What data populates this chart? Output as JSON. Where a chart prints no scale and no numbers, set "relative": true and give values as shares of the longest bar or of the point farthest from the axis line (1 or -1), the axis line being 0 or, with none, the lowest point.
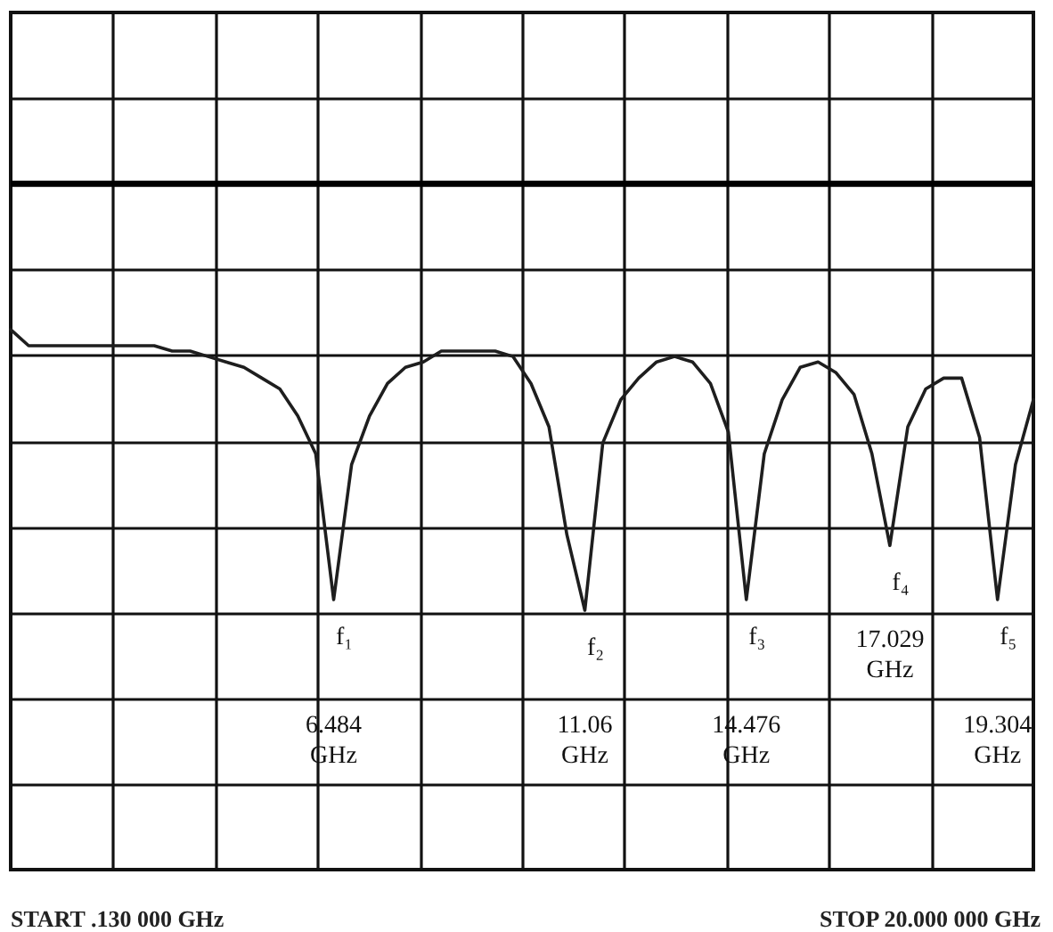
{
  "chart_data": {
    "type": "line",
    "relative": true,
    "categories": [
      null,
      null,
      null,
      null,
      null,
      null,
      null,
      null,
      null,
      null,
      null,
      null,
      null,
      null,
      null,
      null,
      null,
      null,
      null,
      null,
      null,
      null,
      null,
      null,
      null,
      null,
      null,
      null,
      null,
      null,
      null,
      null,
      null,
      null,
      null,
      null,
      null,
      null,
      null,
      null,
      null,
      null,
      null,
      null,
      null,
      null,
      null,
      null,
      null,
      null,
      null,
      null,
      null,
      null,
      null,
      null,
      null,
      null
    ],
    "series": [
      {
        "color": "#1e1e1e",
        "values": [
          1.0,
          0.97,
          0.97,
          0.97,
          0.97,
          0.97,
          0.97,
          0.97,
          0.97,
          0.96,
          0.96,
          0.95,
          0.94,
          0.93,
          0.91,
          0.89,
          0.84,
          0.77,
          0.5,
          0.75,
          0.84,
          0.9,
          0.93,
          0.94,
          0.96,
          0.96,
          0.96,
          0.96,
          0.95,
          0.9,
          0.82,
          0.62,
          0.48,
          0.79,
          0.87,
          0.91,
          0.94,
          0.95,
          0.94,
          0.9,
          0.81,
          0.5,
          0.77,
          0.87,
          0.93,
          0.94,
          0.92,
          0.88,
          0.77,
          0.6,
          0.82,
          0.89,
          0.91,
          0.91,
          0.8,
          0.5,
          0.75,
          0.87
        ]
      }
    ],
    "grid": true,
    "ref_lines": [
      {
        "axis": "y",
        "value": 1.27
      }
    ],
    "annotations": [
      "f₁",
      "f₂",
      "f₃",
      "f₄",
      "f₅",
      "6.484 GHz",
      "11.06 GHz",
      "14.476 GHz",
      "17.029 GHz",
      "19.304 GHz",
      "START .130 000 GHz",
      "STOP 20.000 000 GHz"
    ]
  }
}
